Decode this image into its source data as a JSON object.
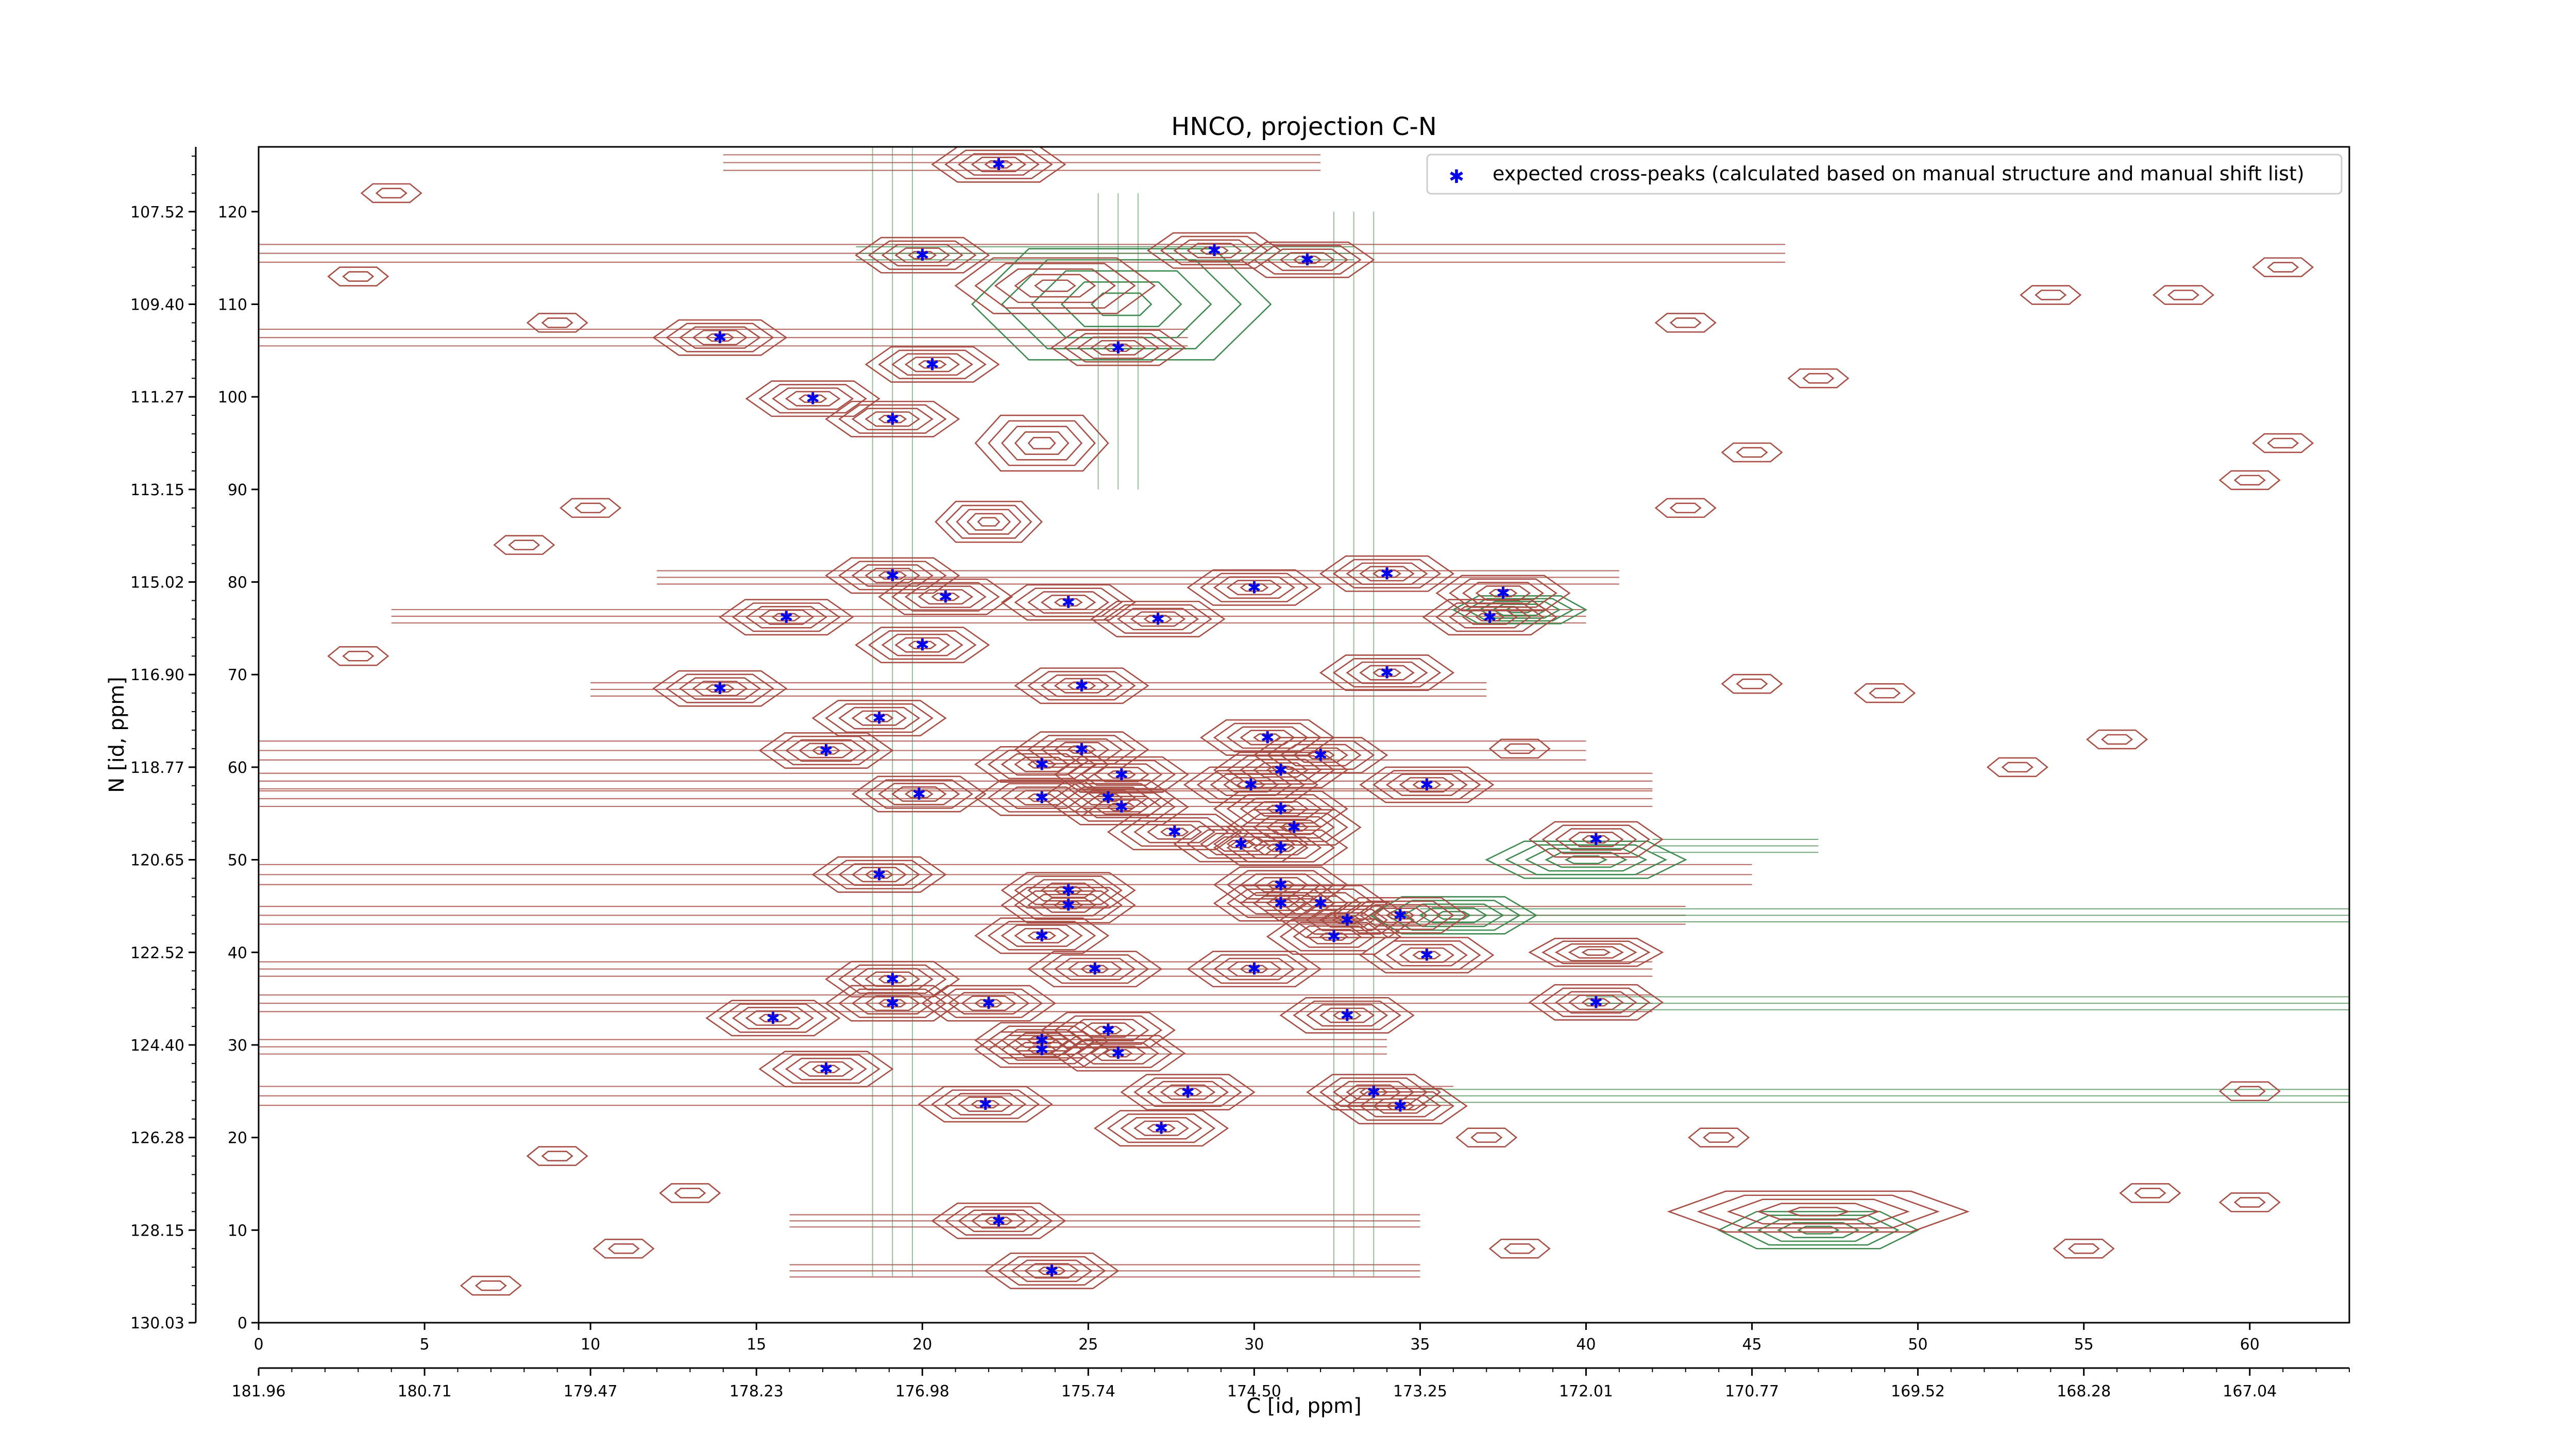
{
  "chart_data": {
    "type": "scatter",
    "title": "HNCO, projection C-N",
    "xlabel": "C [id, ppm]",
    "ylabel": "N [id, ppm]",
    "xlim": [
      0,
      63
    ],
    "ylim": [
      0,
      127
    ],
    "grid": false,
    "legend_position": "top-right",
    "x_ticks": [
      0,
      5,
      10,
      15,
      20,
      25,
      30,
      35,
      40,
      45,
      50,
      55,
      60
    ],
    "y_ticks": [
      0,
      10,
      20,
      30,
      40,
      50,
      60,
      70,
      80,
      90,
      100,
      110,
      120
    ],
    "secondary_x_tick_labels": [
      "181.96",
      "180.71",
      "179.47",
      "178.23",
      "176.98",
      "175.74",
      "174.50",
      "173.25",
      "172.01",
      "170.77",
      "169.52",
      "168.28",
      "167.04"
    ],
    "secondary_y_tick_labels": [
      "130.03",
      "128.15",
      "126.28",
      "124.40",
      "122.52",
      "120.65",
      "118.77",
      "116.90",
      "115.02",
      "113.15",
      "111.27",
      "109.40",
      "107.52"
    ],
    "series": [
      {
        "name": "expected cross-peaks (calculated based on manual structure and manual shift list)",
        "color": "#0000ee",
        "marker": "star",
        "points": [
          [
            22.3,
            125.1
          ],
          [
            20,
            115.3
          ],
          [
            28.8,
            115.8
          ],
          [
            31.6,
            114.8
          ],
          [
            13.9,
            106.4
          ],
          [
            25.9,
            105.3
          ],
          [
            20.3,
            103.5
          ],
          [
            16.7,
            99.8
          ],
          [
            19.1,
            97.6
          ],
          [
            19.1,
            80.7
          ],
          [
            20.7,
            78.4
          ],
          [
            24.4,
            77.8
          ],
          [
            30,
            79.4
          ],
          [
            34,
            80.9
          ],
          [
            37.5,
            78.8
          ],
          [
            15.9,
            76.2
          ],
          [
            27.1,
            76
          ],
          [
            37.1,
            76.2
          ],
          [
            20,
            73.2
          ],
          [
            13.9,
            68.5
          ],
          [
            24.8,
            68.8
          ],
          [
            34,
            70.2
          ],
          [
            18.7,
            65.3
          ],
          [
            17.1,
            61.8
          ],
          [
            30.4,
            63.2
          ],
          [
            24.8,
            61.9
          ],
          [
            32,
            61.3
          ],
          [
            23.6,
            60.3
          ],
          [
            30.8,
            59.7
          ],
          [
            26,
            59.2
          ],
          [
            29.9,
            58.1
          ],
          [
            35.2,
            58.1
          ],
          [
            19.9,
            57.1
          ],
          [
            23.6,
            56.7
          ],
          [
            25.6,
            56.7
          ],
          [
            26,
            55.7
          ],
          [
            30.8,
            55.5
          ],
          [
            31.2,
            53.5
          ],
          [
            27.6,
            53
          ],
          [
            29.6,
            51.7
          ],
          [
            30.8,
            51.3
          ],
          [
            40.3,
            52.2
          ],
          [
            18.7,
            48.4
          ],
          [
            30.8,
            47.3
          ],
          [
            24.4,
            46.7
          ],
          [
            32,
            45.3
          ],
          [
            24.4,
            45.1
          ],
          [
            30.8,
            45.3
          ],
          [
            32.8,
            43.5
          ],
          [
            34.4,
            44
          ],
          [
            32.4,
            41.7
          ],
          [
            23.6,
            41.8
          ],
          [
            35.2,
            39.7
          ],
          [
            25.2,
            38.2
          ],
          [
            30,
            38.2
          ],
          [
            19.1,
            37.1
          ],
          [
            19.1,
            34.5
          ],
          [
            22,
            34.5
          ],
          [
            40.3,
            34.6
          ],
          [
            15.5,
            32.9
          ],
          [
            32.8,
            33.2
          ],
          [
            25.6,
            31.6
          ],
          [
            23.6,
            30.5
          ],
          [
            23.6,
            29.5
          ],
          [
            25.9,
            29.1
          ],
          [
            17.1,
            27.4
          ],
          [
            28,
            24.9
          ],
          [
            33.6,
            24.9
          ],
          [
            21.9,
            23.6
          ],
          [
            34.4,
            23.4
          ],
          [
            27.2,
            21
          ],
          [
            22.3,
            11
          ],
          [
            23.9,
            5.6
          ]
        ]
      }
    ]
  }
}
